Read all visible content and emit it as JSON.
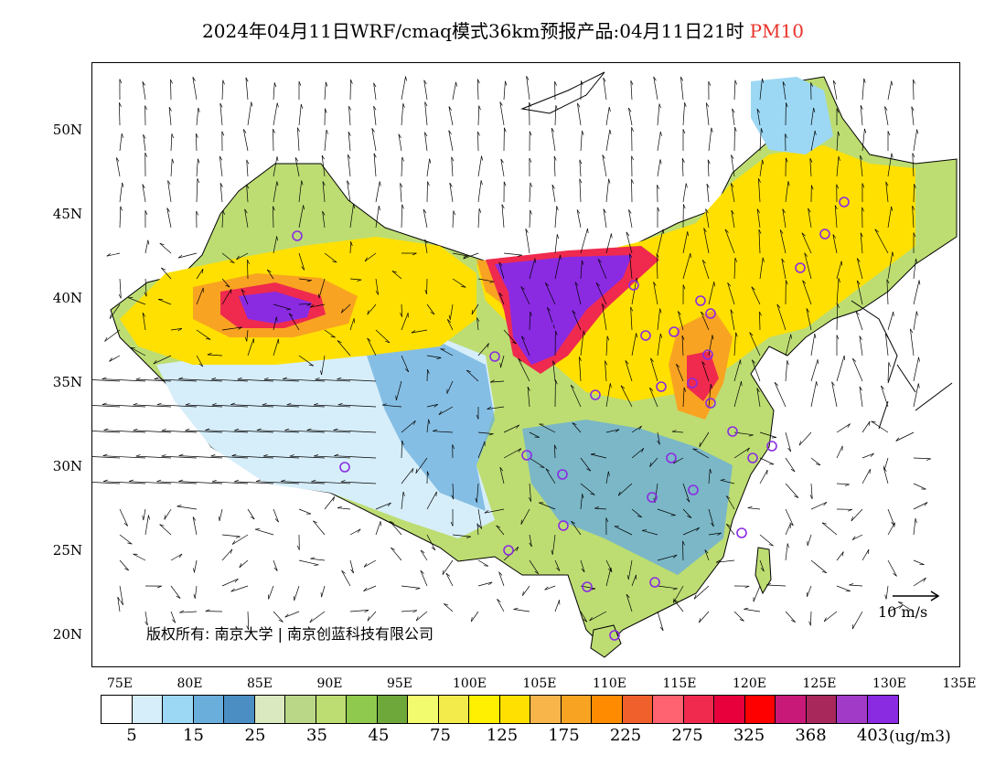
{
  "title": {
    "main": "2024年04月11日WRF/cmaq模式36km预报产品:04月11日21时",
    "pollutant": "PM10",
    "pollutant_color": "#e8332a"
  },
  "map": {
    "lat_labels": [
      "50N",
      "45N",
      "40N",
      "35N",
      "30N",
      "25N",
      "20N"
    ],
    "lon_labels": [
      "75E",
      "80E",
      "85E",
      "90E",
      "95E",
      "100E",
      "105E",
      "110E",
      "115E",
      "120E",
      "125E",
      "130E",
      "135E"
    ],
    "copyright": "版权所有: 南京大学 | 南京创蓝科技有限公司",
    "ref_arrow_label": "10 m/s"
  },
  "legend": {
    "colors": [
      "#ffffff",
      "#d6eefa",
      "#9cd8f4",
      "#6aaedc",
      "#4a8ec4",
      "#dbe9c0",
      "#b9d787",
      "#bddd72",
      "#8fc94e",
      "#6fa83a",
      "#f2fb6e",
      "#f3ea4c",
      "#ffef00",
      "#ffe000",
      "#f8b54a",
      "#f9a322",
      "#ff8c00",
      "#f0602c",
      "#ff6270",
      "#ef2a4e",
      "#e8003c",
      "#ff0000",
      "#c81979",
      "#a8285c",
      "#a23ac8",
      "#8a2be2"
    ],
    "labels": [
      "5",
      "15",
      "25",
      "35",
      "45",
      "75",
      "125",
      "175",
      "225",
      "275",
      "325",
      "368",
      "403"
    ],
    "unit": "(ug/m3)"
  }
}
